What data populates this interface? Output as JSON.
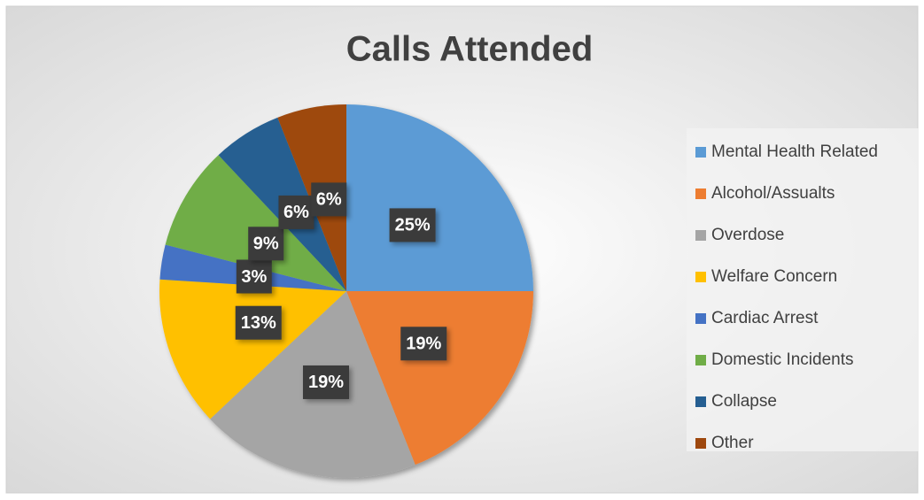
{
  "chart_data": {
    "type": "pie",
    "title": "Calls Attended",
    "categories": [
      "Mental Health Related",
      "Alcohol/Assualts",
      "Overdose",
      "Welfare Concern",
      "Cardiac Arrest",
      "Domestic Incidents",
      "Collapse",
      "Other"
    ],
    "values": [
      25,
      19,
      19,
      13,
      3,
      9,
      6,
      6
    ],
    "value_labels": [
      "25%",
      "19%",
      "19%",
      "13%",
      "3%",
      "9%",
      "6%",
      "6%"
    ],
    "colors": [
      "#5b9bd5",
      "#ed7d31",
      "#a5a5a5",
      "#ffc000",
      "#4472c4",
      "#70ad47",
      "#255e91",
      "#9e480e"
    ],
    "legend": "right"
  }
}
